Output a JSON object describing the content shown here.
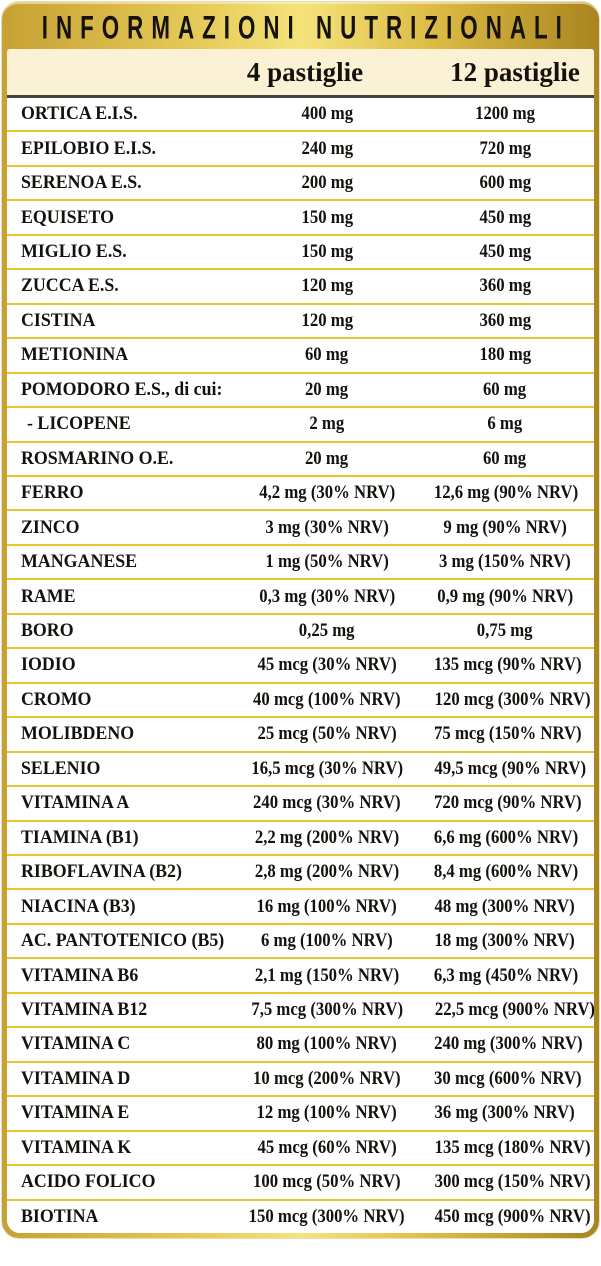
{
  "title": "INFORMAZIONI NUTRIZIONALI",
  "columns": [
    "4 pastiglie",
    "12 pastiglie"
  ],
  "rows": [
    {
      "name": "ORTICA E.I.S.",
      "v4": "400 mg",
      "v12": "1200 mg"
    },
    {
      "name": "EPILOBIO E.I.S.",
      "v4": "240 mg",
      "v12": "720 mg"
    },
    {
      "name": "SERENOA E.S.",
      "v4": "200 mg",
      "v12": "600 mg"
    },
    {
      "name": "EQUISETO",
      "v4": "150 mg",
      "v12": "450 mg"
    },
    {
      "name": "MIGLIO E.S.",
      "v4": "150 mg",
      "v12": "450 mg"
    },
    {
      "name": "ZUCCA E.S.",
      "v4": "120 mg",
      "v12": "360 mg"
    },
    {
      "name": "CISTINA",
      "v4": "120 mg",
      "v12": "360 mg"
    },
    {
      "name": "METIONINA",
      "v4": "60 mg",
      "v12": "180 mg"
    },
    {
      "name": "POMODORO E.S., di cui:",
      "v4": "20 mg",
      "v12": "60 mg"
    },
    {
      "name": "- LICOPENE",
      "v4": "2 mg",
      "v12": "6 mg",
      "indent": true
    },
    {
      "name": "ROSMARINO O.E.",
      "v4": "20 mg",
      "v12": "60 mg"
    },
    {
      "name": "FERRO",
      "v4": "4,2 mg (30% NRV)",
      "v12": "12,6 mg (90% NRV)"
    },
    {
      "name": "ZINCO",
      "v4": "3 mg (30% NRV)",
      "v12": "9 mg (90% NRV)"
    },
    {
      "name": "MANGANESE",
      "v4": "1 mg (50% NRV)",
      "v12": "3 mg (150% NRV)"
    },
    {
      "name": "RAME",
      "v4": "0,3 mg (30% NRV)",
      "v12": "0,9 mg (90% NRV)"
    },
    {
      "name": "BORO",
      "v4": "0,25 mg",
      "v12": "0,75 mg"
    },
    {
      "name": "IODIO",
      "v4": "45 mcg (30% NRV)",
      "v12": "135 mcg (90% NRV)"
    },
    {
      "name": "CROMO",
      "v4": "40 mcg (100% NRV)",
      "v12": "120 mcg (300% NRV)"
    },
    {
      "name": "MOLIBDENO",
      "v4": "25 mcg (50% NRV)",
      "v12": "75 mcg (150% NRV)"
    },
    {
      "name": "SELENIO",
      "v4": "16,5 mcg (30% NRV)",
      "v12": "49,5 mcg (90% NRV)"
    },
    {
      "name": "VITAMINA A",
      "v4": "240 mcg (30% NRV)",
      "v12": "720 mcg (90% NRV)"
    },
    {
      "name": "TIAMINA (B1)",
      "v4": "2,2 mg (200% NRV)",
      "v12": "6,6 mg (600% NRV)"
    },
    {
      "name": "RIBOFLAVINA (B2)",
      "v4": "2,8 mg (200% NRV)",
      "v12": "8,4 mg (600% NRV)"
    },
    {
      "name": "NIACINA (B3)",
      "v4": "16 mg (100% NRV)",
      "v12": "48 mg (300% NRV)"
    },
    {
      "name": "AC. PANTOTENICO (B5)",
      "v4": "6 mg (100% NRV)",
      "v12": "18 mg (300% NRV)"
    },
    {
      "name": "VITAMINA B6",
      "v4": "2,1 mg (150% NRV)",
      "v12": "6,3 mg (450% NRV)"
    },
    {
      "name": "VITAMINA B12",
      "v4": "7,5 mcg (300% NRV)",
      "v12": "22,5 mcg (900% NRV)"
    },
    {
      "name": "VITAMINA C",
      "v4": "80 mg (100% NRV)",
      "v12": "240 mg (300% NRV)"
    },
    {
      "name": "VITAMINA D",
      "v4": "10 mcg (200% NRV)",
      "v12": "30 mcg (600% NRV)"
    },
    {
      "name": "VITAMINA E",
      "v4": "12 mg (100% NRV)",
      "v12": "36 mg (300% NRV)"
    },
    {
      "name": "VITAMINA K",
      "v4": "45 mcg (60% NRV)",
      "v12": "135 mcg (180% NRV)"
    },
    {
      "name": "ACIDO FOLICO",
      "v4": "100 mcg (50% NRV)",
      "v12": "300 mcg (150% NRV)"
    },
    {
      "name": "BIOTINA",
      "v4": "150 mcg (300% NRV)",
      "v12": "450 mcg (900% NRV)"
    }
  ],
  "colors": {
    "band-left": "#c7a134",
    "band-center": "#f5e37b",
    "band-right": "#aa8420",
    "frame-mid": "#e8cd5c",
    "header-bg": "#fbf2d6",
    "rows-bg": "#ffffff",
    "gold-divider": "#e8c72e",
    "dark-divider": "#46423a",
    "text": "#15120d"
  }
}
